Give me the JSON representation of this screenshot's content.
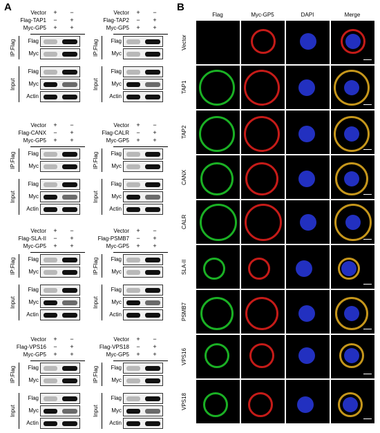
{
  "panel_labels": {
    "a": "A",
    "b": "B"
  },
  "wb": {
    "header_rows": [
      "Vector",
      "Myc-GP5"
    ],
    "ip_label": "IP:Flag",
    "input_label": "Input",
    "blot_rows": [
      "Flag",
      "Myc",
      "Flag",
      "Myc",
      "Actin"
    ],
    "plus": "+",
    "minus": "−",
    "panels": [
      {
        "flag_label": "Flag-TAP1"
      },
      {
        "flag_label": "Flag-TAP2"
      },
      {
        "flag_label": "Flag-CANX"
      },
      {
        "flag_label": "Flag-CALR"
      },
      {
        "flag_label": "Flag-SLA-II"
      },
      {
        "flag_label": "Flag-PSMB7"
      },
      {
        "flag_label": "Flag-VPS16"
      },
      {
        "flag_label": "Flag-VPS18"
      }
    ]
  },
  "microscopy": {
    "columns": [
      "Flag",
      "Myc-GP5",
      "DAPI",
      "Merge"
    ],
    "rows": [
      "Vector",
      "TAP1",
      "TAP2",
      "CANX",
      "CALR",
      "SLA-II",
      "PSMB7",
      "VPS16",
      "VPS18"
    ],
    "colors": {
      "flag": "#1fcf2a",
      "myc": "#e8201c",
      "dapi": "#2a3cf0",
      "merge_yellow": "#e8b020"
    }
  }
}
